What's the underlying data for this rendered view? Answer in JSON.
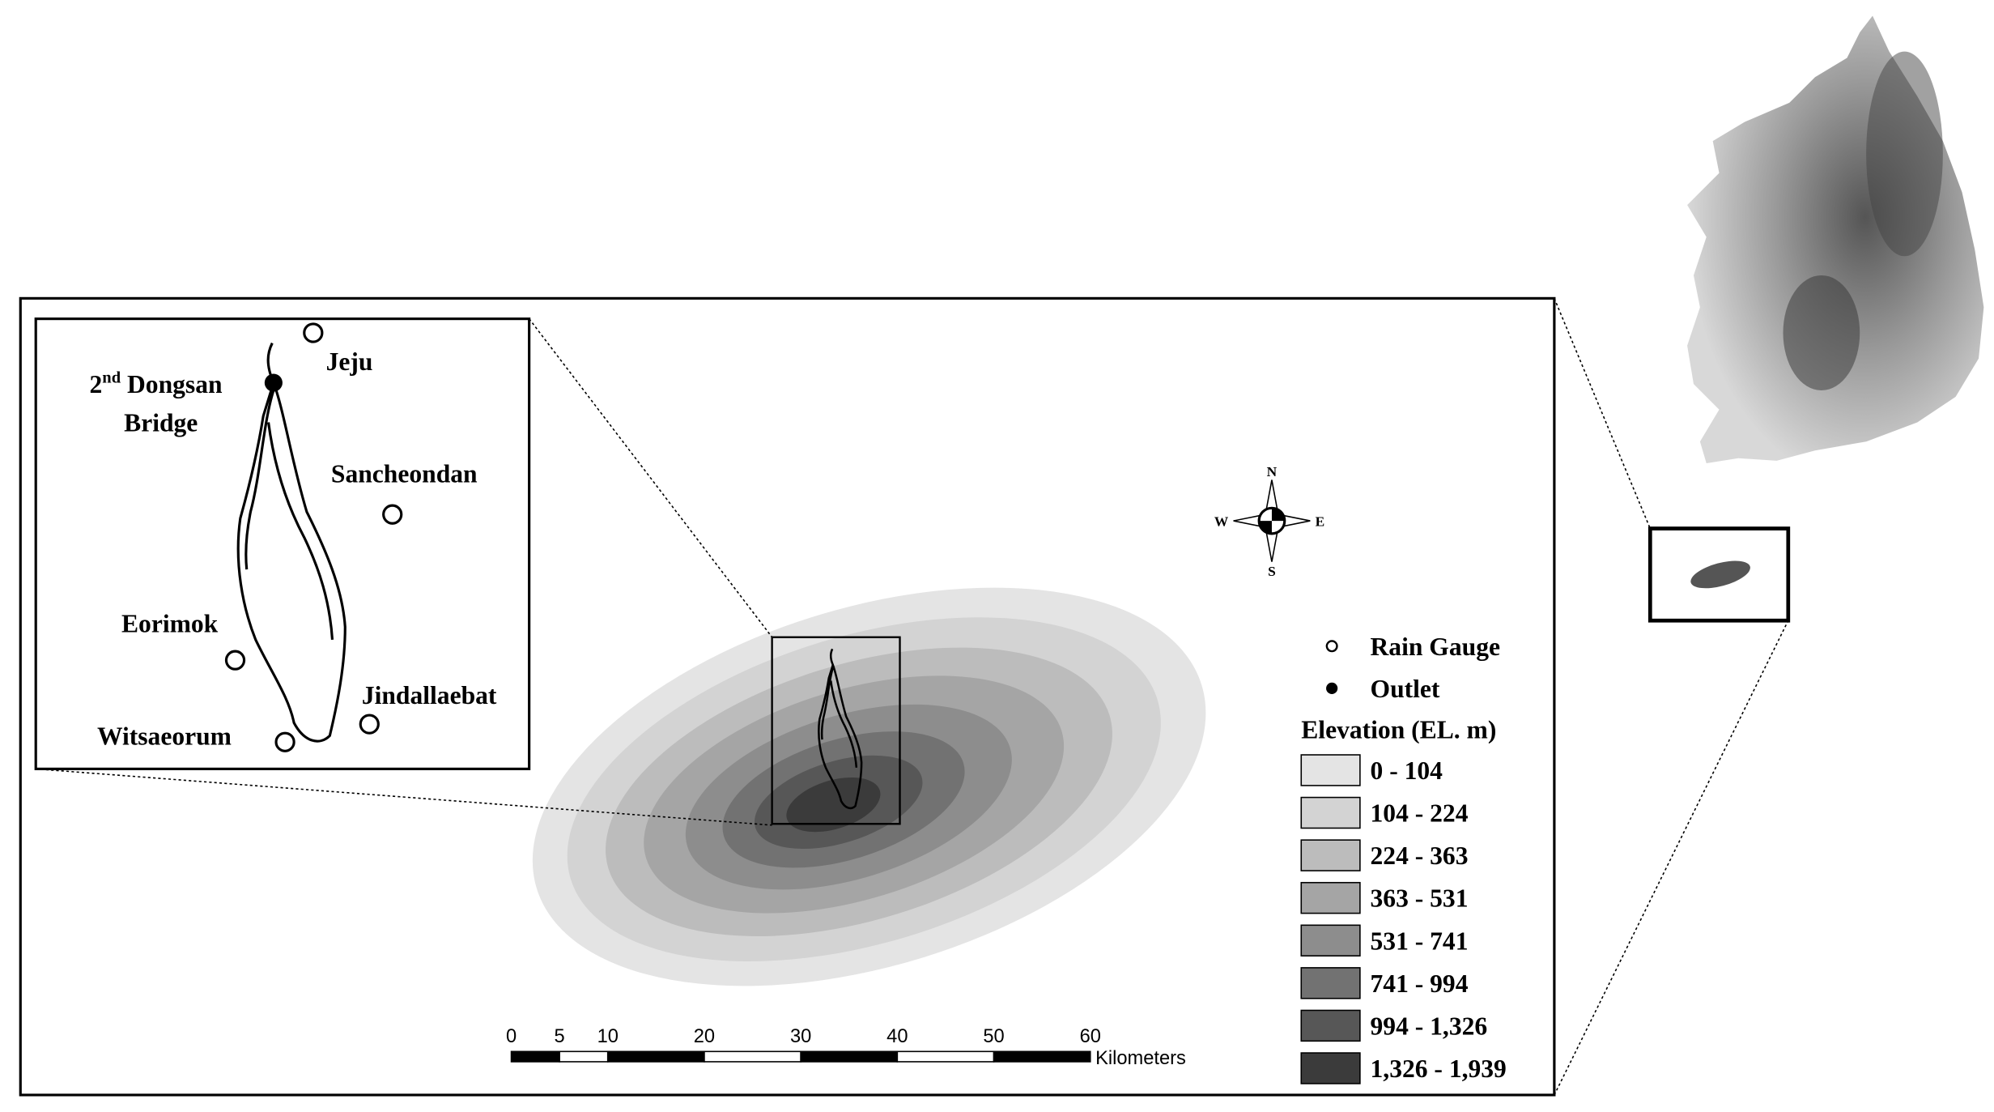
{
  "inset": {
    "gauges": [
      {
        "name": "Jeju"
      },
      {
        "name": "Sancheondan"
      },
      {
        "name": "Eorimok"
      },
      {
        "name": "Jindallaebat"
      },
      {
        "name": "Witsaeorum"
      }
    ],
    "outlet": {
      "line1": [
        "2",
        "nd",
        " Dongsan"
      ],
      "line2": "Bridge"
    }
  },
  "compass": {
    "north": "N",
    "south": "S",
    "east": "E",
    "west": "W"
  },
  "legend": {
    "rain_gauge": "Rain Gauge",
    "outlet": "Outlet",
    "elevation_title": "Elevation (EL. m)",
    "classes": [
      {
        "label": "0 - 104",
        "color": "#e4e4e4"
      },
      {
        "label": "104 - 224",
        "color": "#d3d3d3"
      },
      {
        "label": "224 - 363",
        "color": "#bcbcbc"
      },
      {
        "label": "363 - 531",
        "color": "#a5a5a5"
      },
      {
        "label": "531 - 741",
        "color": "#8d8d8d"
      },
      {
        "label": "741 - 994",
        "color": "#727272"
      },
      {
        "label": "994 - 1,326",
        "color": "#575757"
      },
      {
        "label": "1,326 - 1,939",
        "color": "#3b3b3b"
      }
    ]
  },
  "scale_bar": {
    "ticks": [
      0,
      5,
      10,
      20,
      30,
      40,
      50,
      60
    ],
    "unit": "Kilometers"
  }
}
